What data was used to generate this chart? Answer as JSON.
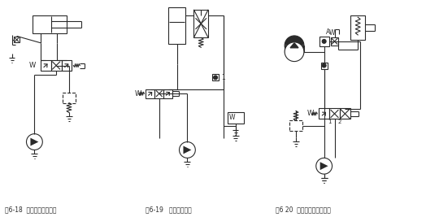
{
  "background_color": "#ffffff",
  "caption1": "图6-18  旁路节流减速回路",
  "caption2": "图6-19   自重增速回路",
  "caption3": "图6 20  用蓄能器的增速回路",
  "fig_width": 5.4,
  "fig_height": 2.67,
  "dpi": 100,
  "line_color": "#2a2a2a",
  "line_width": 0.8
}
